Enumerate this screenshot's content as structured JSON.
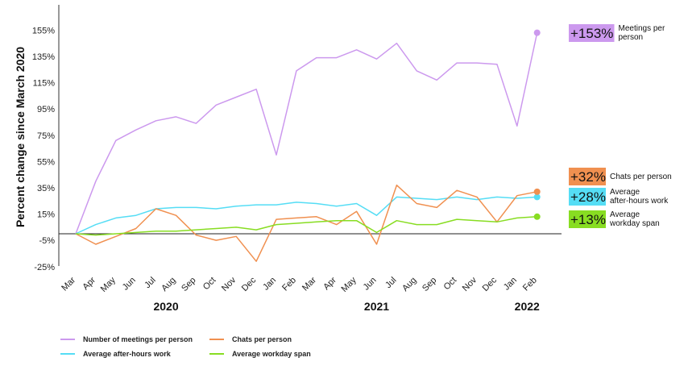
{
  "chart_data": {
    "type": "line",
    "ylabel": "Percent change since March 2020",
    "ylim": [
      -25,
      165
    ],
    "y_ticks": [
      "-25%",
      "-5%",
      "15%",
      "35%",
      "55%",
      "75%",
      "95%",
      "115%",
      "135%",
      "155%"
    ],
    "categories": [
      "Mar",
      "Apr",
      "May",
      "Jun",
      "Jul",
      "Aug",
      "Sep",
      "Oct",
      "Nov",
      "Dec",
      "Jan",
      "Feb",
      "Mar",
      "Apr",
      "May",
      "Jun",
      "Jul",
      "Aug",
      "Sep",
      "Oct",
      "Nov",
      "Dec",
      "Jan",
      "Feb"
    ],
    "years": [
      {
        "label": "2020",
        "category_index": 4.5
      },
      {
        "label": "2021",
        "category_index": 15
      },
      {
        "label": "2022",
        "category_index": 22.5
      }
    ],
    "baseline": 0,
    "series": [
      {
        "name": "Number of meetings per person",
        "color": "#cc99ee",
        "end_badge": "+153%",
        "end_label": [
          "Meetings per",
          "person"
        ],
        "values": [
          0,
          40,
          71,
          79,
          86,
          89,
          84,
          98,
          104,
          110,
          60,
          124,
          134,
          134,
          140,
          133,
          145,
          124,
          117,
          130,
          130,
          129,
          82,
          153
        ]
      },
      {
        "name": "Average after-hours work",
        "color": "#55ddf5",
        "end_badge": "+28%",
        "end_label": [
          "Average",
          "after-hours work"
        ],
        "values": [
          0,
          7,
          12,
          14,
          19,
          20,
          20,
          19,
          21,
          22,
          22,
          24,
          23,
          21,
          23,
          14,
          28,
          27,
          26,
          28,
          26,
          28,
          27,
          28
        ]
      },
      {
        "name": "Chats per person",
        "color": "#f09050",
        "end_badge": "+32%",
        "end_label": [
          "Chats per person"
        ],
        "values": [
          0,
          -8,
          -2,
          4,
          19,
          14,
          -1,
          -5,
          -2,
          -21,
          11,
          12,
          13,
          7,
          17,
          -8,
          37,
          23,
          20,
          33,
          28,
          9,
          29,
          32
        ]
      },
      {
        "name": "Average workday span",
        "color": "#88dd22",
        "end_badge": "+13%",
        "end_label": [
          "Average",
          "workday span"
        ],
        "values": [
          0,
          -1,
          0,
          1,
          2,
          2,
          3,
          4,
          5,
          3,
          7,
          8,
          9,
          10,
          10,
          1,
          10,
          7,
          7,
          11,
          10,
          9,
          12,
          13
        ]
      }
    ],
    "legend_order": [
      0,
      2,
      1,
      3
    ],
    "legend_placement": "bottom-left",
    "grid": false
  }
}
